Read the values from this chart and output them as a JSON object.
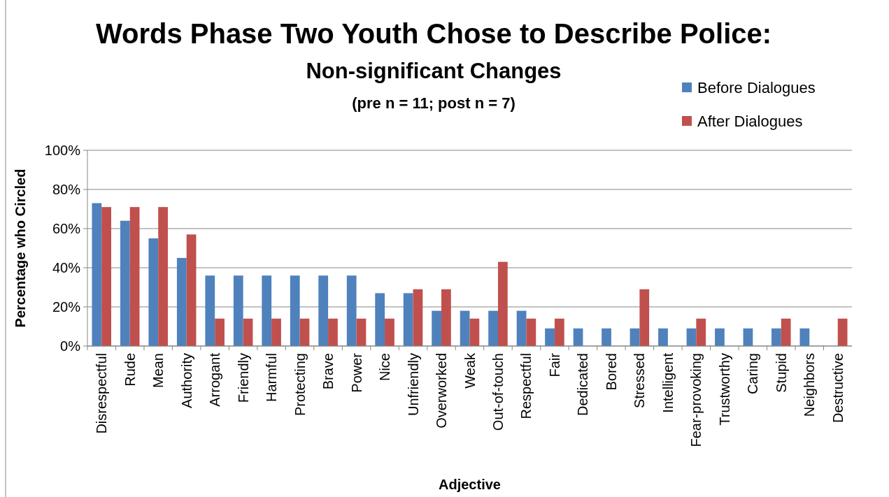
{
  "chart_data": {
    "type": "bar",
    "title": "Words Phase Two Youth Chose to Describe Police:",
    "subtitle": "Non-significant Changes",
    "annotations": [
      "(pre n = 11; post n = 7)"
    ],
    "xlabel": "Adjective",
    "ylabel": "Percentage who Circled",
    "categories": [
      "Disrespectful",
      "Rude",
      "Mean",
      "Authority",
      "Arrogant",
      "Friendly",
      "Harmful",
      "Protecting",
      "Brave",
      "Power",
      "Nice",
      "Unfriendly",
      "Overworked",
      "Weak",
      "Out-of-touch",
      "Respectful",
      "Fair",
      "Dedicated",
      "Bored",
      "Stressed",
      "Intelligent",
      "Fear-provoking",
      "Trustworthy",
      "Caring",
      "Stupid",
      "Neighbors",
      "Destructive"
    ],
    "series": [
      {
        "name": "Before Dialogues",
        "color": "#4f81bd",
        "values": [
          73,
          64,
          55,
          45,
          36,
          36,
          36,
          36,
          36,
          36,
          27,
          27,
          18,
          18,
          18,
          18,
          9,
          9,
          9,
          9,
          9,
          9,
          9,
          9,
          9,
          9,
          0
        ]
      },
      {
        "name": "After Dialogues",
        "color": "#c0504d",
        "values": [
          71,
          71,
          71,
          57,
          14,
          14,
          14,
          14,
          14,
          14,
          14,
          29,
          29,
          14,
          43,
          14,
          14,
          0,
          0,
          29,
          0,
          14,
          0,
          0,
          14,
          0,
          14
        ]
      }
    ],
    "ylim": [
      0,
      100
    ],
    "yticks": [
      {
        "value": 0,
        "label": "0%"
      },
      {
        "value": 20,
        "label": "20%"
      },
      {
        "value": 40,
        "label": "40%"
      },
      {
        "value": 60,
        "label": "60%"
      },
      {
        "value": 80,
        "label": "80%"
      },
      {
        "value": 100,
        "label": "100%"
      }
    ],
    "grid": "y",
    "legend": "top right"
  }
}
